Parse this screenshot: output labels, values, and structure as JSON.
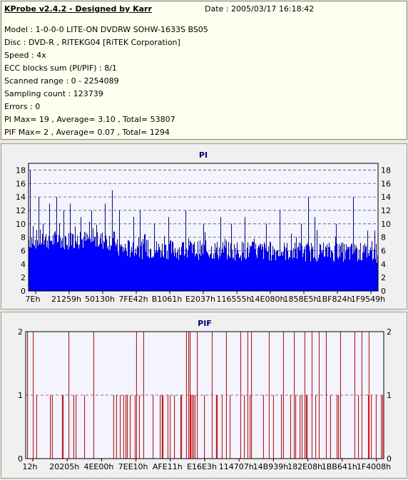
{
  "header": {
    "title": "KProbe v2.4.2 - Designed by Karr",
    "date": "Date : 2005/03/17 16:18:42"
  },
  "info_lines": [
    "Model : 1-0-0-0 LITE-ON DVDRW SOHW-1633S BS05",
    "Disc : DVD-R , RITEKG04 [RiTEK Corporation]",
    "Speed : 4x",
    "ECC blocks sum (PI/PIF) : 8/1",
    "Scanned range : 0 - 2254089",
    "Sampling count : 123739",
    "Errors : 0",
    "PI Max= 19 , Average= 3.10 , Total= 53807",
    "PIF Max= 2 , Average= 0.07 , Total= 1294"
  ],
  "colors": {
    "pi": "#0000ff",
    "pif": "#ff0000",
    "title": "#000080"
  },
  "chart_data": [
    {
      "type": "bar",
      "title": "PI",
      "ylim": [
        0,
        19
      ],
      "yticks": [
        0,
        2,
        4,
        6,
        8,
        10,
        12,
        14,
        16,
        18
      ],
      "xtick_labels": [
        "7Eh",
        "21259h",
        "50130h",
        "7FE42h",
        "B1061h",
        "E2037h",
        "116555h",
        "14E080h",
        "1858E5h",
        "1BF824h",
        "1F9549h"
      ],
      "baseline": 6.5,
      "spikes": [
        [
          0.005,
          18
        ],
        [
          0.03,
          14
        ],
        [
          0.06,
          13
        ],
        [
          0.08,
          14
        ],
        [
          0.1,
          12
        ],
        [
          0.12,
          13
        ],
        [
          0.15,
          11
        ],
        [
          0.18,
          12
        ],
        [
          0.22,
          13
        ],
        [
          0.24,
          15
        ],
        [
          0.26,
          12
        ],
        [
          0.3,
          11
        ],
        [
          0.32,
          12
        ],
        [
          0.36,
          10
        ],
        [
          0.4,
          11
        ],
        [
          0.45,
          12
        ],
        [
          0.5,
          10
        ],
        [
          0.55,
          11
        ],
        [
          0.58,
          10
        ],
        [
          0.62,
          11
        ],
        [
          0.68,
          10
        ],
        [
          0.72,
          12
        ],
        [
          0.78,
          10
        ],
        [
          0.8,
          14
        ],
        [
          0.82,
          11
        ],
        [
          0.88,
          10
        ],
        [
          0.93,
          14
        ],
        [
          0.97,
          9
        ],
        [
          0.99,
          9
        ]
      ],
      "seed": 7
    },
    {
      "type": "bar",
      "title": "PIF",
      "ylim": [
        0,
        2
      ],
      "yticks": [
        0,
        1,
        2
      ],
      "xtick_labels": [
        "12h",
        "20205h",
        "4EE00h",
        "7EE10h",
        "AFE11h",
        "E16E3h",
        "114707h",
        "14B939h",
        "182E08h",
        "1BB641h",
        "1F4008h"
      ],
      "twos": [
        0.005,
        0.02,
        0.12,
        0.19,
        0.31,
        0.33,
        0.45,
        0.455,
        0.46,
        0.48,
        0.52,
        0.56,
        0.6,
        0.62,
        0.63,
        0.68,
        0.72,
        0.75,
        0.78,
        0.8,
        0.82,
        0.84,
        0.88,
        0.92,
        0.94,
        0.96
      ],
      "ones_density": 0.26,
      "seed": 3
    }
  ]
}
